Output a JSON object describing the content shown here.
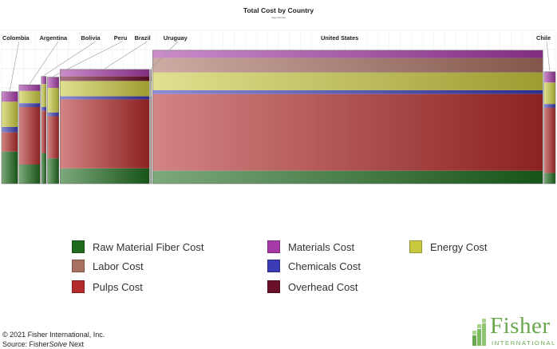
{
  "chart_data": {
    "type": "variable-width stacked bar",
    "title": "Total Cost by Country",
    "subtitle": "Sage FiberNet",
    "components": [
      {
        "key": "raw",
        "name": "Raw Material Fiber Cost",
        "color": "#1e6b1e"
      },
      {
        "key": "pulps",
        "name": "Pulps Cost",
        "color": "#b32b2b"
      },
      {
        "key": "chemicals",
        "name": "Chemicals Cost",
        "color": "#3b3bb5"
      },
      {
        "key": "energy",
        "name": "Energy Cost",
        "color": "#c9c940"
      },
      {
        "key": "labor",
        "name": "Labor Cost",
        "color": "#a87060"
      },
      {
        "key": "overhead",
        "name": "Overhead Cost",
        "color": "#6a0f28"
      },
      {
        "key": "materials",
        "name": "Materials Cost",
        "color": "#a63aa6"
      }
    ],
    "countries": [
      {
        "name": "Colombia",
        "width": 10,
        "raw": 42,
        "pulps": 25,
        "chemicals": 7,
        "energy": 33,
        "labor": 0,
        "overhead": 0,
        "materials": 13,
        "labeled": true
      },
      {
        "name": "Argentina",
        "width": 13,
        "raw": 25,
        "pulps": 75,
        "chemicals": 5,
        "energy": 16,
        "labor": 0,
        "overhead": 0,
        "materials": 8,
        "labeled": true
      },
      {
        "name": "Bolivia",
        "width": 3,
        "raw": 40,
        "pulps": 55,
        "chemicals": 5,
        "energy": 30,
        "labor": 0,
        "overhead": 0,
        "materials": 10,
        "labeled": true
      },
      {
        "name": "Peru",
        "width": 7,
        "raw": 33,
        "pulps": 55,
        "chemicals": 5,
        "energy": 32,
        "labor": 0,
        "overhead": 0,
        "materials": 14,
        "labeled": true
      },
      {
        "name": "Brazil",
        "width": 55,
        "raw": 20,
        "pulps": 90,
        "chemicals": 4,
        "energy": 20,
        "labor": 0,
        "overhead": 6,
        "materials": 9,
        "labeled": true
      },
      {
        "name": "Uruguay",
        "width": 0.5,
        "raw": 20,
        "pulps": 90,
        "chemicals": 4,
        "energy": 20,
        "labor": 0,
        "overhead": 6,
        "materials": 9,
        "labeled": true
      },
      {
        "name": "United States",
        "width": 240,
        "raw": 17,
        "pulps": 100,
        "chemicals": 5,
        "energy": 23,
        "labor": 19,
        "overhead": 0,
        "materials": 10,
        "labeled": true
      },
      {
        "name": "Chile",
        "width": 7,
        "raw": 14,
        "pulps": 85,
        "chemicals": 5,
        "energy": 28,
        "labor": 0,
        "overhead": 0,
        "materials": 14,
        "labeled": true
      }
    ],
    "ylim": [
      0,
      200
    ],
    "grid": true
  },
  "footer": {
    "copyright": "© 2021 Fisher International, Inc.",
    "source_prefix": "Source: Fisher",
    "source_italic": "Solve",
    "source_suffix": " Next"
  },
  "logo": {
    "name": "Fisher",
    "sub": "INTERNATIONAL",
    "color": "#6aa84f"
  }
}
